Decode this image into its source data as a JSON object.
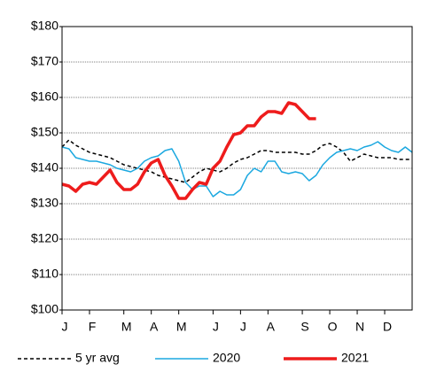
{
  "chart_data": {
    "type": "line",
    "categories": [
      "J",
      null,
      null,
      null,
      "F",
      null,
      null,
      null,
      null,
      "M",
      null,
      null,
      null,
      "A",
      null,
      null,
      null,
      "M",
      null,
      null,
      null,
      null,
      "J",
      null,
      null,
      null,
      "J",
      null,
      null,
      null,
      "A",
      null,
      null,
      null,
      null,
      "S",
      null,
      null,
      null,
      "O",
      null,
      null,
      null,
      "N",
      null,
      null,
      null,
      "D",
      null,
      null,
      null,
      null
    ],
    "ylim": [
      100,
      180
    ],
    "yticks": [
      {
        "value": 100,
        "label": "$100"
      },
      {
        "value": 110,
        "label": "$110"
      },
      {
        "value": 120,
        "label": "$120"
      },
      {
        "value": 130,
        "label": "$130"
      },
      {
        "value": 140,
        "label": "$140"
      },
      {
        "value": 150,
        "label": "$150"
      },
      {
        "value": 160,
        "label": "$160"
      },
      {
        "value": 170,
        "label": "$170"
      },
      {
        "value": 180,
        "label": "$180"
      }
    ],
    "grid": true,
    "legend": "bottom",
    "series": [
      {
        "name": "5 yr avg",
        "color": "#000000",
        "dash": true,
        "width": 1.5,
        "values": [
          146,
          148,
          146.5,
          145.5,
          144.5,
          144,
          143.5,
          143,
          142,
          141,
          140.5,
          140,
          139.5,
          139,
          138,
          137.5,
          137,
          136.5,
          136,
          137.5,
          139,
          140,
          139.5,
          139,
          140,
          141.5,
          142.5,
          143,
          144,
          145,
          145,
          144.5,
          144.5,
          144.5,
          144.5,
          144,
          144,
          145,
          146.5,
          147,
          146,
          144.5,
          142,
          143,
          144,
          143.5,
          143,
          143,
          143,
          142.5,
          142.5,
          142.5
        ]
      },
      {
        "name": "2020",
        "color": "#1ba8e0",
        "dash": false,
        "width": 1.5,
        "values": [
          146,
          145.5,
          143,
          142.5,
          142,
          142,
          141.5,
          141,
          140,
          139.5,
          139,
          140,
          142,
          143,
          143.5,
          145,
          145.5,
          142,
          136,
          134,
          135,
          135,
          132,
          133.5,
          132.5,
          132.5,
          134,
          138,
          140,
          139,
          142,
          142,
          139,
          138.5,
          139,
          138.5,
          136.5,
          138,
          141,
          143,
          144.5,
          145,
          145.5,
          145,
          146,
          146.5,
          147.5,
          146,
          145,
          144.5,
          146,
          144.5
        ]
      },
      {
        "name": "2021",
        "color": "#ee1c1c",
        "dash": false,
        "width": 3.5,
        "values": [
          135.5,
          135,
          133.5,
          135.5,
          136,
          135.5,
          137.5,
          139.5,
          136,
          134,
          134,
          135.5,
          139,
          141.5,
          142.5,
          138,
          135,
          131.5,
          131.5,
          134,
          136,
          135.5,
          140,
          142,
          146,
          149.5,
          150,
          152,
          152,
          154.5,
          156,
          156,
          155.5,
          158.5,
          158,
          156,
          154,
          154,
          null,
          null,
          null,
          null,
          null,
          null,
          null,
          null,
          null,
          null,
          null,
          null,
          null,
          null
        ]
      }
    ]
  }
}
